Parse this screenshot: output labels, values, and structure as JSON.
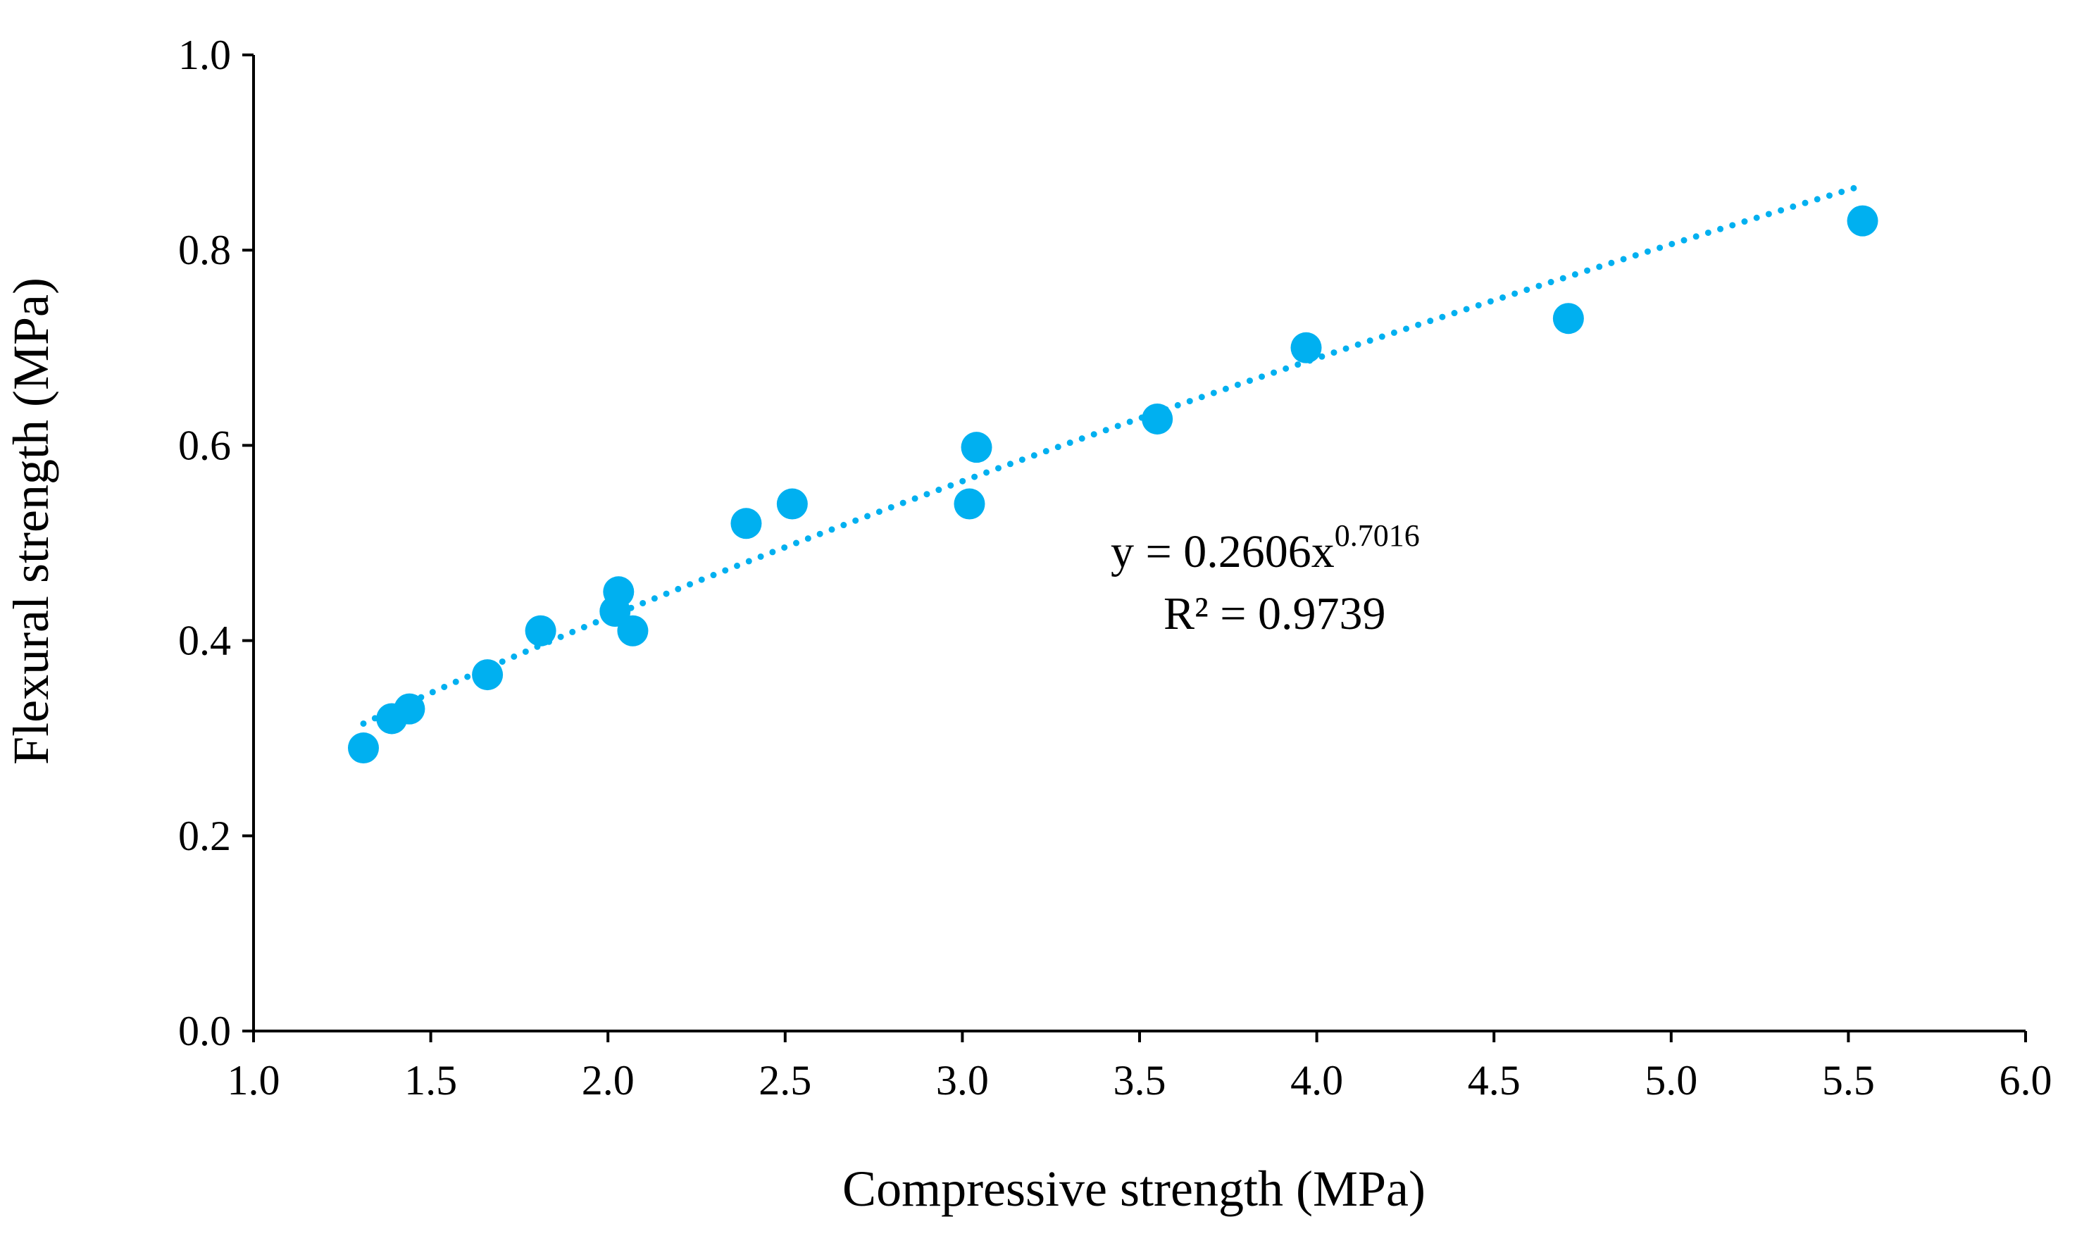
{
  "chart_data": {
    "type": "scatter",
    "xlabel": "Compressive strength (MPa)",
    "ylabel": "Flexural strength (MPa)",
    "xlim": [
      1.0,
      6.0
    ],
    "ylim": [
      0.0,
      1.0
    ],
    "x_ticks": [
      "1.0",
      "1.5",
      "2.0",
      "2.5",
      "3.0",
      "3.5",
      "4.0",
      "4.5",
      "5.0",
      "5.5",
      "6.0"
    ],
    "y_ticks": [
      "0.0",
      "0.2",
      "0.4",
      "0.6",
      "0.8",
      "1.0"
    ],
    "grid": false,
    "legend": "none",
    "marker_color": "#00B0F0",
    "trendline_color": "#00B0F0",
    "series": [
      {
        "points": [
          {
            "x": 1.31,
            "y": 0.29
          },
          {
            "x": 1.39,
            "y": 0.32
          },
          {
            "x": 1.44,
            "y": 0.33
          },
          {
            "x": 1.66,
            "y": 0.365
          },
          {
            "x": 1.81,
            "y": 0.41
          },
          {
            "x": 2.02,
            "y": 0.43
          },
          {
            "x": 2.03,
            "y": 0.45
          },
          {
            "x": 2.07,
            "y": 0.41
          },
          {
            "x": 2.39,
            "y": 0.52
          },
          {
            "x": 2.52,
            "y": 0.54
          },
          {
            "x": 3.02,
            "y": 0.54
          },
          {
            "x": 3.04,
            "y": 0.598
          },
          {
            "x": 3.55,
            "y": 0.627
          },
          {
            "x": 3.97,
            "y": 0.7
          },
          {
            "x": 4.71,
            "y": 0.73
          },
          {
            "x": 5.54,
            "y": 0.83
          }
        ]
      }
    ],
    "trendline": {
      "type": "power",
      "coefficient": 0.2606,
      "exponent": 0.7016,
      "x_range": [
        1.31,
        5.54
      ],
      "r_squared": 0.9739
    },
    "annotation": {
      "equation_main": "y = 0.2606x",
      "equation_exponent": "0.7016",
      "r2_text": "R² = 0.9739"
    }
  }
}
